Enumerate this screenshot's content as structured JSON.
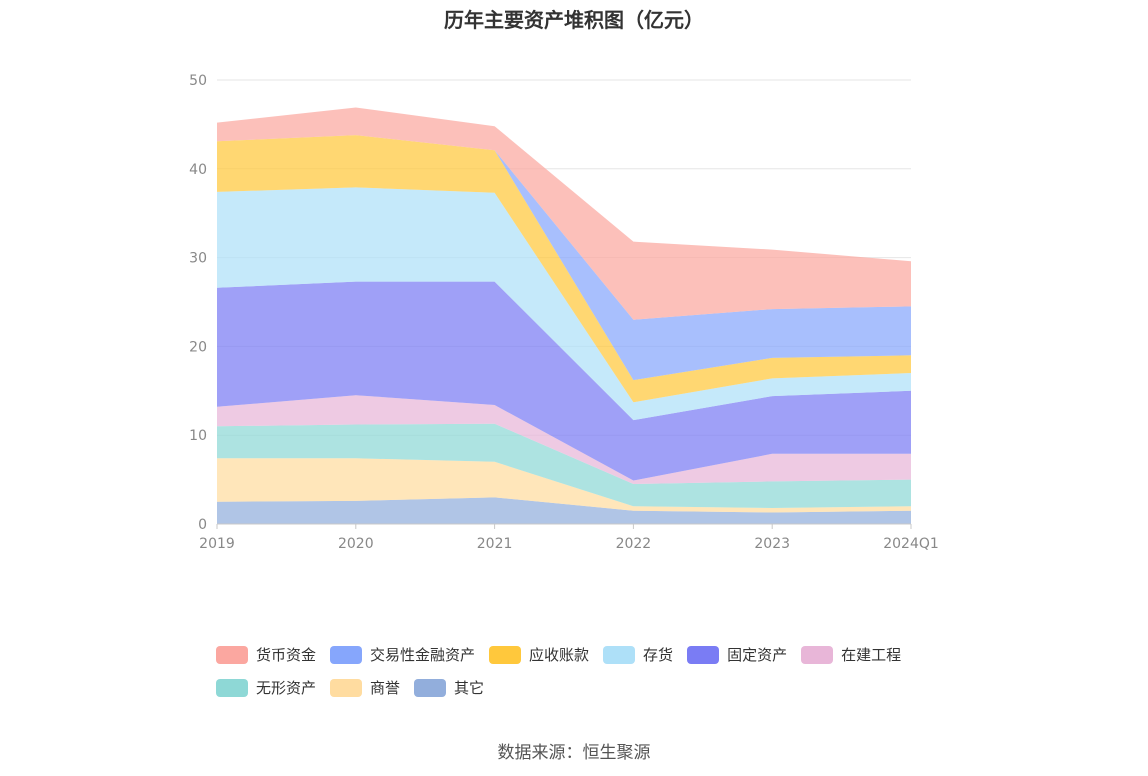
{
  "chart_data": {
    "type": "area",
    "stacked": true,
    "title": "历年主要资产堆积图（亿元）",
    "categories": [
      "2019",
      "2020",
      "2021",
      "2022",
      "2023",
      "2024Q1"
    ],
    "ylim": [
      0,
      50
    ],
    "yticks": [
      0,
      10,
      20,
      30,
      40,
      50
    ],
    "grid": true,
    "legend_position": "bottom",
    "series": [
      {
        "name": "其它",
        "color": "#92AEDC",
        "values": [
          2.5,
          2.6,
          3.0,
          1.5,
          1.3,
          1.5
        ]
      },
      {
        "name": "商誉",
        "color": "#FFDCA0",
        "values": [
          4.9,
          4.8,
          4.0,
          0.5,
          0.5,
          0.5
        ]
      },
      {
        "name": "无形资产",
        "color": "#8ED8D6",
        "values": [
          3.6,
          3.8,
          4.3,
          2.5,
          3.0,
          3.0
        ]
      },
      {
        "name": "在建工程",
        "color": "#E8B6D8",
        "values": [
          2.2,
          3.3,
          2.1,
          0.4,
          3.1,
          2.9
        ]
      },
      {
        "name": "固定资产",
        "color": "#7A7CF4",
        "values": [
          13.4,
          12.8,
          13.9,
          6.8,
          6.5,
          7.1
        ]
      },
      {
        "name": "存货",
        "color": "#AEE0F8",
        "values": [
          10.8,
          10.6,
          10.0,
          2.0,
          2.0,
          2.0
        ]
      },
      {
        "name": "应收账款",
        "color": "#FFC83C",
        "values": [
          5.7,
          5.9,
          4.8,
          2.5,
          2.3,
          2.0
        ]
      },
      {
        "name": "交易性金融资产",
        "color": "#86A6FC",
        "values": [
          0.0,
          0.0,
          0.0,
          6.8,
          5.5,
          5.5
        ]
      },
      {
        "name": "货币资金",
        "color": "#FBA7A0",
        "values": [
          2.1,
          3.1,
          2.7,
          8.8,
          6.7,
          5.1
        ]
      }
    ],
    "legend_order": [
      "货币资金",
      "交易性金融资产",
      "应收账款",
      "存货",
      "固定资产",
      "在建工程",
      "无形资产",
      "商誉",
      "其它"
    ]
  },
  "source_text": "数据来源：恒生聚源"
}
